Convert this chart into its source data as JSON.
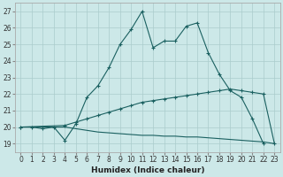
{
  "xlabel": "Humidex (Indice chaleur)",
  "bg_color": "#cce8e8",
  "grid_color": "#aacccc",
  "line_color": "#1a6060",
  "xlim": [
    -0.5,
    23.5
  ],
  "ylim": [
    18.5,
    27.5
  ],
  "xticks": [
    0,
    1,
    2,
    3,
    4,
    5,
    6,
    7,
    8,
    9,
    10,
    11,
    12,
    13,
    14,
    15,
    16,
    17,
    18,
    19,
    20,
    21,
    22,
    23
  ],
  "yticks": [
    19,
    20,
    21,
    22,
    23,
    24,
    25,
    26,
    27
  ],
  "line1_x": [
    0,
    1,
    2,
    3,
    4,
    5,
    6,
    7,
    8,
    9,
    10,
    11,
    12,
    13,
    14,
    15,
    16,
    17,
    18,
    19,
    20,
    21,
    22,
    23
  ],
  "line1_y": [
    20.0,
    20.0,
    19.9,
    20.0,
    19.2,
    20.2,
    21.8,
    22.5,
    23.6,
    25.0,
    25.9,
    27.0,
    24.8,
    25.2,
    25.2,
    26.1,
    26.3,
    24.5,
    23.2,
    22.2,
    21.8,
    20.5,
    19.0,
    null
  ],
  "line2_x": [
    0,
    4,
    5,
    6,
    7,
    8,
    9,
    10,
    11,
    12,
    13,
    14,
    15,
    16,
    17,
    18,
    19,
    20,
    21,
    22,
    23
  ],
  "line2_y": [
    20.0,
    20.1,
    20.3,
    20.5,
    20.7,
    20.9,
    21.1,
    21.3,
    21.5,
    21.6,
    21.7,
    21.8,
    21.9,
    22.0,
    22.1,
    22.2,
    22.3,
    22.2,
    22.1,
    22.0,
    19.0
  ],
  "line3_x": [
    0,
    4,
    5,
    6,
    7,
    8,
    9,
    10,
    11,
    12,
    13,
    14,
    15,
    16,
    17,
    18,
    19,
    20,
    21,
    22,
    23
  ],
  "line3_y": [
    20.0,
    20.0,
    19.9,
    19.8,
    19.7,
    19.65,
    19.6,
    19.55,
    19.5,
    19.5,
    19.45,
    19.45,
    19.4,
    19.4,
    19.35,
    19.3,
    19.25,
    19.2,
    19.15,
    19.1,
    19.0
  ]
}
